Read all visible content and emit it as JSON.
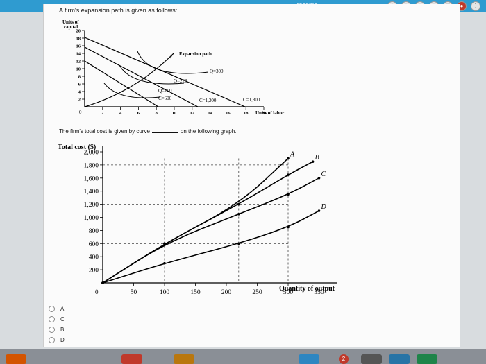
{
  "browser": {
    "url_fragment": "...racome..."
  },
  "question": {
    "title": "A firm's expansion path is given as follows:",
    "middle_before": "The firm's total cost is given by curve",
    "middle_after": "on the following graph.",
    "options": [
      "A",
      "C",
      "B",
      "D"
    ]
  },
  "taskbar": {
    "badge": "2"
  },
  "chart_data": [
    {
      "type": "line",
      "ylabel": "Units of capital",
      "xlabel": "Units of labor",
      "title": "Expansion path",
      "x_ticks": [
        2,
        4,
        6,
        8,
        10,
        12,
        14,
        16,
        18,
        20
      ],
      "y_ticks": [
        2,
        4,
        6,
        8,
        10,
        12,
        14,
        16,
        18,
        20
      ],
      "origin_label": "0",
      "isocost_lines": [
        {
          "label": "C=600",
          "x_intercept": 8.5,
          "y_intercept": 7
        },
        {
          "label": "C=1,200",
          "x_intercept": 13,
          "y_intercept": 12
        },
        {
          "label": "C=1,800",
          "x_intercept": 18.5,
          "y_intercept": 18
        }
      ],
      "isoquants": [
        {
          "label": "Q=100"
        },
        {
          "label": "Q=220"
        },
        {
          "label": "Q=300"
        }
      ],
      "expansion_path_label": "Expansion path"
    },
    {
      "type": "line",
      "ylabel": "Total cost ($)",
      "xlabel": "Quantity of output",
      "origin_label": "0",
      "x_ticks": [
        50,
        100,
        150,
        200,
        250,
        300,
        350
      ],
      "y_ticks": [
        200,
        400,
        600,
        800,
        "1,000",
        "1,200",
        "1,400",
        "1,600",
        "1,800",
        "2,000"
      ],
      "xlim": [
        0,
        380
      ],
      "ylim": [
        0,
        2100
      ],
      "series": [
        {
          "name": "A",
          "x": [
            0,
            100,
            220,
            300
          ],
          "y": [
            0,
            600,
            1200,
            1900
          ]
        },
        {
          "name": "B",
          "x": [
            0,
            100,
            220,
            300,
            340
          ],
          "y": [
            0,
            600,
            1200,
            1650,
            1850
          ]
        },
        {
          "name": "C",
          "x": [
            0,
            100,
            220,
            300,
            350
          ],
          "y": [
            0,
            600,
            1050,
            1350,
            1600
          ]
        },
        {
          "name": "D",
          "x": [
            0,
            100,
            220,
            300,
            350
          ],
          "y": [
            0,
            300,
            600,
            850,
            1100
          ]
        }
      ]
    }
  ]
}
